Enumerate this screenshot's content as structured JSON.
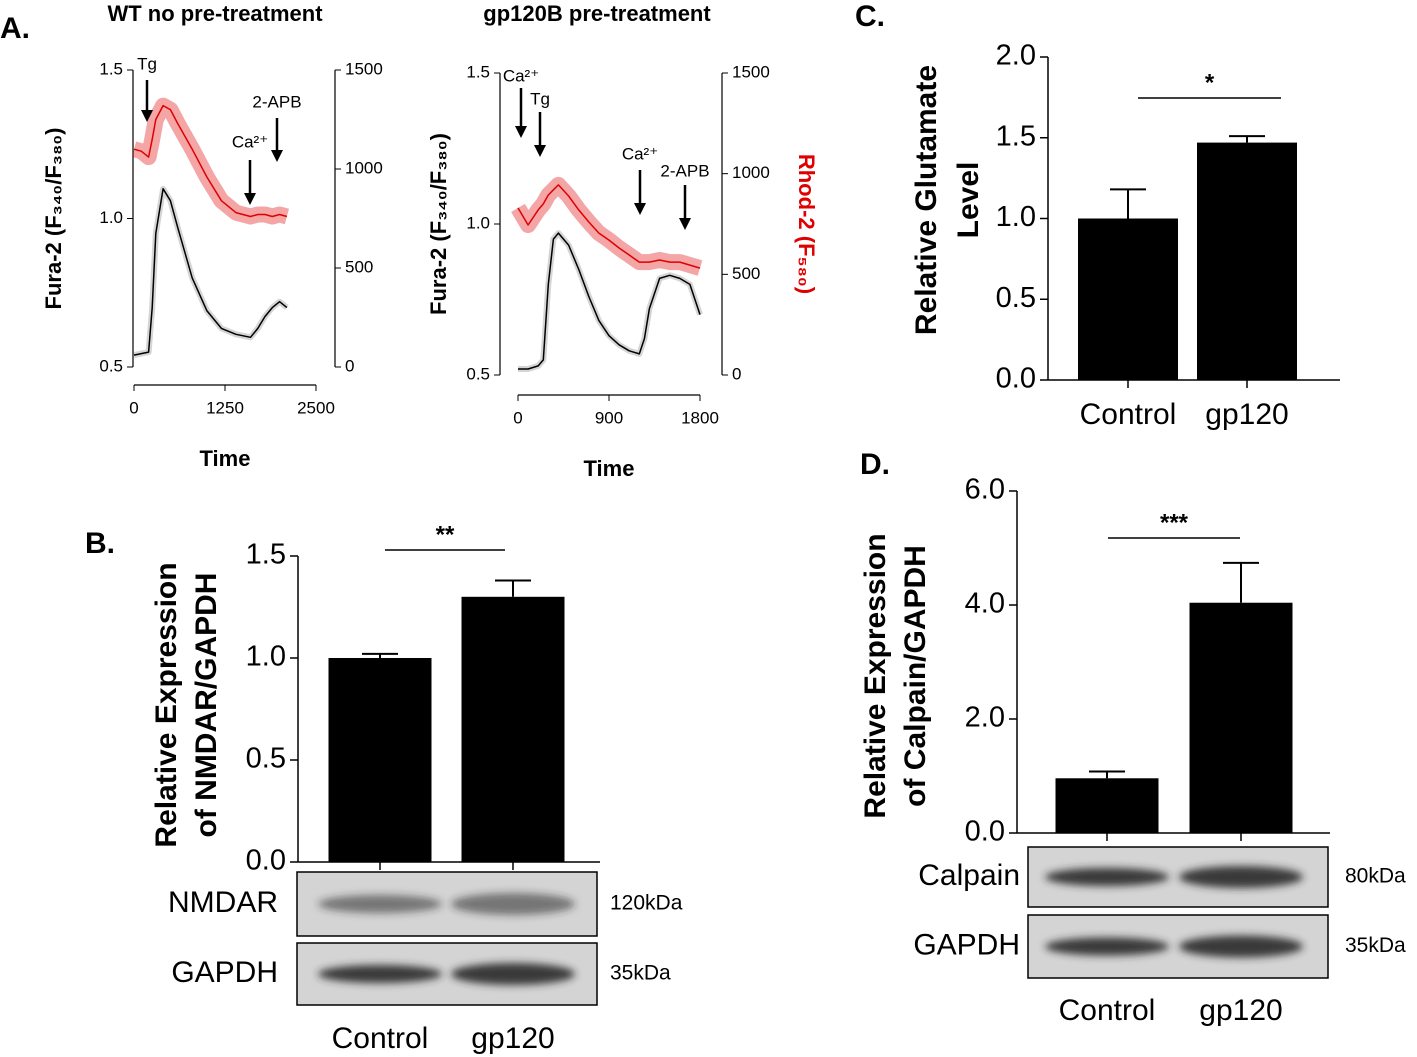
{
  "chart_data": [
    {
      "type": "line",
      "panel_label": "A.",
      "title": "WT no pre-treatment",
      "x_label": "Time",
      "y_label": "Fura-2 (F₃₄₀/F₃₈₀)",
      "x": [
        0,
        100,
        200,
        250,
        300,
        400,
        500,
        600,
        800,
        1000,
        1200,
        1400,
        1600,
        1700,
        1800,
        1900,
        2000,
        2100
      ],
      "series": [
        {
          "color": "#000000",
          "values": [
            0.54,
            0.545,
            0.55,
            0.7,
            0.95,
            1.1,
            1.06,
            0.97,
            0.8,
            0.69,
            0.63,
            0.61,
            0.6,
            0.63,
            0.67,
            0.7,
            0.72,
            0.7
          ]
        },
        {
          "color": "#e00000",
          "axis": "y2",
          "values": [
            1100,
            1090,
            1060,
            1150,
            1250,
            1320,
            1300,
            1230,
            1100,
            960,
            840,
            780,
            760,
            770,
            770,
            760,
            770,
            760
          ]
        }
      ],
      "xlim": [
        0,
        2500
      ],
      "xticks": [
        0,
        1250,
        2500
      ],
      "ylim": [
        0.5,
        1.5
      ],
      "yticks": [
        0.5,
        {
          "value": 1,
          "label": "1.0"
        },
        1.5
      ],
      "y2lim": [
        0,
        1500
      ],
      "y2ticks": [
        0,
        500,
        1000,
        1500
      ],
      "annotations": [
        "Tg",
        "Ca²⁺",
        "2-APB"
      ]
    },
    {
      "type": "line",
      "title": "gp120B pre-treatment",
      "x_label": "Time",
      "y_label": "Fura-2 (F₃₄₀/F₃₈₀)",
      "y2_label": "Rhod-2 (F₅₈₀)",
      "x": [
        0,
        100,
        200,
        250,
        300,
        350,
        400,
        500,
        600,
        700,
        800,
        900,
        1000,
        1100,
        1200,
        1250,
        1300,
        1400,
        1500,
        1600,
        1700,
        1800
      ],
      "series": [
        {
          "color": "#000000",
          "values": [
            0.52,
            0.52,
            0.53,
            0.55,
            0.8,
            0.95,
            0.97,
            0.93,
            0.85,
            0.76,
            0.68,
            0.63,
            0.6,
            0.58,
            0.57,
            0.62,
            0.72,
            0.82,
            0.83,
            0.82,
            0.8,
            0.7
          ]
        },
        {
          "color": "#e00000",
          "axis": "y2",
          "values": [
            830,
            745,
            820,
            850,
            894,
            920,
            944,
            889,
            820,
            760,
            705,
            670,
            631,
            596,
            561,
            561,
            561,
            571,
            561,
            561,
            546,
            531
          ]
        }
      ],
      "xlim": [
        0,
        1800
      ],
      "xticks": [
        0,
        900,
        1800
      ],
      "ylim": [
        0.5,
        1.5
      ],
      "yticks": [
        0.5,
        {
          "value": 1,
          "label": "1.0"
        },
        1.5
      ],
      "y2lim": [
        0,
        1500
      ],
      "y2ticks": [
        0,
        500,
        1000,
        1500
      ],
      "annotations": [
        "Ca²⁺",
        "Tg",
        "Ca²⁺",
        "2-APB"
      ]
    },
    {
      "type": "bar",
      "panel_label": "C.",
      "y_label": [
        "Relative Glutamate",
        "Level"
      ],
      "categories": [
        "Control",
        "gp120"
      ],
      "values": [
        1.0,
        1.47
      ],
      "errors": [
        0.18,
        0.04
      ],
      "color": "#000000",
      "ylim": [
        0,
        2
      ],
      "yticks": [
        {
          "value": 0,
          "label": "0.0"
        },
        0.5,
        {
          "value": 1,
          "label": "1.0"
        },
        1.5,
        {
          "value": 2,
          "label": "2.0"
        }
      ],
      "significance": "*"
    },
    {
      "type": "bar",
      "panel_label": "B.",
      "y_label": [
        "Relative Expression",
        "of NMDAR/GAPDH"
      ],
      "categories": [
        "Control",
        "gp120"
      ],
      "values": [
        1.0,
        1.3
      ],
      "errors": [
        0.02,
        0.08
      ],
      "color": "#000000",
      "ylim": [
        0,
        1.5
      ],
      "yticks": [
        {
          "value": 0,
          "label": "0.0"
        },
        0.5,
        {
          "value": 1,
          "label": "1.0"
        },
        1.5
      ],
      "significance": "**",
      "blots": [
        {
          "label": "NMDAR",
          "size": "120kDa"
        },
        {
          "label": "GAPDH",
          "size": "35kDa"
        }
      ]
    },
    {
      "type": "bar",
      "panel_label": "D.",
      "y_label": [
        "Relative Expression",
        "of Calpain/GAPDH"
      ],
      "categories": [
        "Control",
        "gp120"
      ],
      "values": [
        0.96,
        4.04
      ],
      "errors": [
        0.12,
        0.7
      ],
      "color": "#000000",
      "ylim": [
        0,
        6
      ],
      "yticks": [
        {
          "value": 0,
          "label": "0.0"
        },
        {
          "value": 2,
          "label": "2.0"
        },
        {
          "value": 4,
          "label": "4.0"
        },
        {
          "value": 6,
          "label": "6.0"
        }
      ],
      "significance": "***",
      "blots": [
        {
          "label": "Calpain",
          "size": "80kDa"
        },
        {
          "label": "GAPDH",
          "size": "35kDa"
        }
      ]
    }
  ]
}
